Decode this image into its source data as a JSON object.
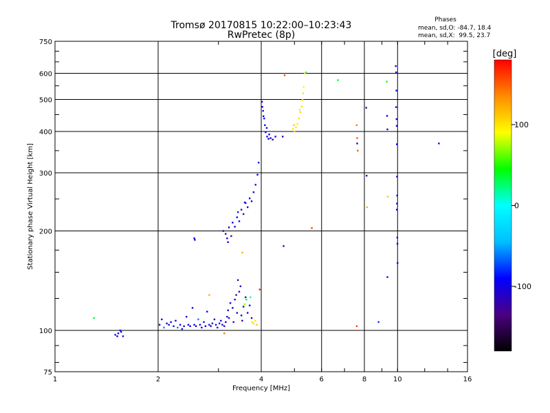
{
  "chart_data": {
    "type": "scatter",
    "title": "Tromsø 20170815 10:22:00–10:23:43",
    "subtitle": "RwPretec (8p)",
    "xlabel": "Frequency [MHz]",
    "ylabel": "Stationary phase Virtual Height [km]",
    "xscale": "log",
    "yscale": "log",
    "xlim": [
      1,
      16
    ],
    "ylim": [
      75,
      750
    ],
    "x_ticks": [
      1,
      2,
      4,
      6,
      8,
      10,
      16
    ],
    "y_ticks": [
      75,
      100,
      200,
      300,
      400,
      500,
      600,
      750
    ],
    "x_grid": [
      2,
      4,
      6,
      8,
      10
    ],
    "y_grid": [
      100,
      200,
      300,
      400,
      500,
      600
    ],
    "grid": true,
    "stats": {
      "heading": "Phases",
      "line_o": "mean, sd,O: -84.7, 18.4",
      "line_x": "mean, sd,X:  99.5, 23.7"
    },
    "colorbar": {
      "label": "[deg]",
      "range": [
        -180,
        180
      ],
      "ticks": [
        100,
        0,
        -100
      ],
      "colors": [
        "#000000",
        "#4b0082",
        "#0000ff",
        "#00bfff",
        "#00ffff",
        "#00ff00",
        "#ffff00",
        "#ff8c00",
        "#ff0000"
      ]
    },
    "series": [
      {
        "points": [
          [
            1.3,
            109,
            40
          ],
          [
            1.5,
            97,
            -100
          ],
          [
            1.53,
            98,
            -95
          ],
          [
            1.55,
            100,
            -105
          ],
          [
            1.58,
            96,
            -110
          ],
          [
            1.52,
            96,
            -100
          ],
          [
            1.56,
            99,
            -98
          ],
          [
            2.02,
            104,
            -100
          ],
          [
            2.05,
            108,
            -95
          ],
          [
            2.08,
            102,
            -60
          ],
          [
            2.12,
            105,
            -110
          ],
          [
            2.15,
            104,
            -100
          ],
          [
            2.18,
            106,
            -90
          ],
          [
            2.22,
            103,
            -100
          ],
          [
            2.25,
            107,
            -105
          ],
          [
            2.28,
            102,
            -60
          ],
          [
            2.32,
            104,
            -100
          ],
          [
            2.35,
            101,
            -95
          ],
          [
            2.38,
            103,
            -110
          ],
          [
            2.42,
            110,
            -100
          ],
          [
            2.45,
            104,
            -90
          ],
          [
            2.48,
            103,
            -100
          ],
          [
            2.52,
            117,
            -105
          ],
          [
            2.55,
            104,
            -100
          ],
          [
            2.58,
            103,
            -95
          ],
          [
            2.62,
            108,
            -60
          ],
          [
            2.65,
            104,
            -100
          ],
          [
            2.68,
            102,
            -105
          ],
          [
            2.72,
            106,
            -100
          ],
          [
            2.75,
            103,
            -95
          ],
          [
            2.78,
            114,
            -100
          ],
          [
            2.82,
            104,
            -100
          ],
          [
            2.85,
            103,
            -110
          ],
          [
            2.88,
            105,
            -95
          ],
          [
            2.92,
            108,
            -100
          ],
          [
            2.95,
            104,
            -105
          ],
          [
            2.98,
            102,
            -90
          ],
          [
            3.02,
            105,
            -100
          ],
          [
            3.05,
            107,
            -110
          ],
          [
            3.08,
            104,
            -105
          ],
          [
            3.12,
            103,
            -100
          ],
          [
            3.15,
            106,
            -95
          ],
          [
            3.18,
            110,
            -100
          ],
          [
            2.55,
            190,
            -95
          ],
          [
            2.56,
            188,
            -100
          ],
          [
            3.2,
            115,
            -100
          ],
          [
            3.25,
            121,
            -105
          ],
          [
            3.3,
            117,
            -100
          ],
          [
            3.35,
            124,
            -95
          ],
          [
            3.4,
            113,
            -110
          ],
          [
            3.45,
            131,
            -100
          ],
          [
            3.5,
            111,
            -90
          ],
          [
            3.55,
            118,
            -100
          ],
          [
            3.6,
            126,
            -105
          ],
          [
            3.65,
            113,
            -100
          ],
          [
            3.7,
            119,
            -95
          ],
          [
            3.75,
            109,
            -100
          ],
          [
            3.32,
            106,
            -100
          ],
          [
            3.42,
            142,
            -115
          ],
          [
            3.48,
            136,
            -120
          ],
          [
            3.58,
            120,
            70
          ],
          [
            3.62,
            124,
            40
          ],
          [
            3.72,
            126,
            10
          ],
          [
            3.38,
            128,
            -130
          ],
          [
            3.52,
            107,
            -120
          ],
          [
            3.22,
            109,
            -110
          ],
          [
            3.12,
            98,
            140
          ],
          [
            3.76,
            106,
            100
          ],
          [
            3.8,
            105,
            105
          ],
          [
            3.84,
            107,
            100
          ],
          [
            3.88,
            104,
            110
          ],
          [
            3.96,
            133,
            170
          ],
          [
            2.82,
            128,
            120
          ],
          [
            3.1,
            200,
            -100
          ],
          [
            3.15,
            196,
            -105
          ],
          [
            3.18,
            190,
            -110
          ],
          [
            3.22,
            205,
            -100
          ],
          [
            3.27,
            193,
            -120
          ],
          [
            3.3,
            212,
            -100
          ],
          [
            3.35,
            206,
            -105
          ],
          [
            3.4,
            220,
            -95
          ],
          [
            3.45,
            214,
            -100
          ],
          [
            3.5,
            232,
            -100
          ],
          [
            3.55,
            225,
            -105
          ],
          [
            3.6,
            243,
            -100
          ],
          [
            3.65,
            236,
            -95
          ],
          [
            3.7,
            251,
            -100
          ],
          [
            3.75,
            246,
            -100
          ],
          [
            3.8,
            262,
            -105
          ],
          [
            3.85,
            276,
            -100
          ],
          [
            3.9,
            296,
            -95
          ],
          [
            3.93,
            322,
            -100
          ],
          [
            3.2,
            185,
            -90
          ],
          [
            3.42,
            228,
            -85
          ],
          [
            3.58,
            244,
            -85
          ],
          [
            3.52,
            172,
            120
          ],
          [
            4.02,
            492,
            -100
          ],
          [
            4.05,
            462,
            -105
          ],
          [
            4.08,
            438,
            -100
          ],
          [
            4.1,
            418,
            -95
          ],
          [
            4.12,
            398,
            -100
          ],
          [
            4.16,
            386,
            -105
          ],
          [
            4.2,
            380,
            -100
          ],
          [
            4.26,
            382,
            -110
          ],
          [
            4.32,
            378,
            -105
          ],
          [
            4.4,
            386,
            -100
          ],
          [
            4.06,
            445,
            -95
          ],
          [
            4.03,
            475,
            -100
          ],
          [
            4.15,
            410,
            -100
          ],
          [
            4.22,
            392,
            -95
          ],
          [
            4.62,
            386,
            -100
          ],
          [
            4.65,
            180,
            -105
          ],
          [
            4.68,
            592,
            160
          ],
          [
            5.62,
            204,
            160
          ],
          [
            4.95,
            408,
            100
          ],
          [
            5.0,
            400,
            105
          ],
          [
            5.05,
            412,
            100
          ],
          [
            5.1,
            422,
            95
          ],
          [
            5.15,
            438,
            100
          ],
          [
            5.2,
            458,
            105
          ],
          [
            5.25,
            476,
            100
          ],
          [
            5.28,
            498,
            95
          ],
          [
            5.3,
            522,
            100
          ],
          [
            5.32,
            546,
            95
          ],
          [
            4.98,
            418,
            110
          ],
          [
            5.18,
            466,
            100
          ],
          [
            5.4,
            604,
            20
          ],
          [
            5.36,
            600,
            100
          ],
          [
            6.7,
            572,
            40
          ],
          [
            7.6,
            418,
            140
          ],
          [
            7.62,
            382,
            150
          ],
          [
            7.62,
            368,
            -100
          ],
          [
            7.65,
            350,
            150
          ],
          [
            7.6,
            103,
            160
          ],
          [
            8.1,
            472,
            -120
          ],
          [
            8.12,
            294,
            -100
          ],
          [
            8.15,
            236,
            120
          ],
          [
            8.8,
            106,
            -80
          ],
          [
            9.3,
            566,
            40
          ],
          [
            9.32,
            446,
            -100
          ],
          [
            9.34,
            406,
            -100
          ],
          [
            9.36,
            254,
            110
          ],
          [
            9.34,
            145,
            -100
          ],
          [
            9.88,
            631,
            -100
          ],
          [
            9.9,
            604,
            -100
          ],
          [
            9.92,
            532,
            -100
          ],
          [
            9.9,
            474,
            -100
          ],
          [
            9.93,
            436,
            -100
          ],
          [
            9.94,
            416,
            -100
          ],
          [
            9.95,
            366,
            -100
          ],
          [
            9.96,
            292,
            -100
          ],
          [
            9.97,
            256,
            -100
          ],
          [
            9.96,
            242,
            -100
          ],
          [
            9.95,
            232,
            -100
          ],
          [
            9.98,
            191,
            -100
          ],
          [
            9.99,
            183,
            -100
          ],
          [
            10.0,
            160,
            -100
          ],
          [
            13.2,
            368,
            -100
          ]
        ]
      }
    ]
  }
}
